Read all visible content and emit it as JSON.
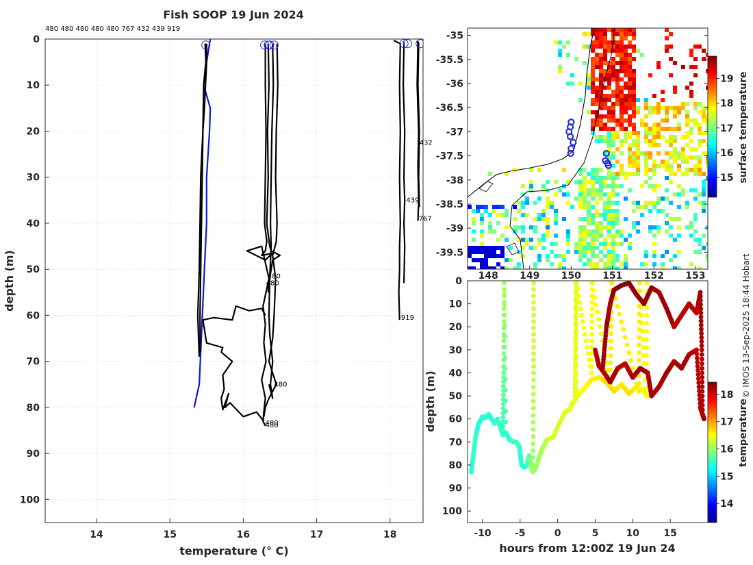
{
  "title": "Fish SOOP 19 Jun 2024",
  "copyright": "© IMOS 13-Sep-2025 18:44 Hobart",
  "profile_ids_text": "480 480 480 480 480 767 432 439 919",
  "colors": {
    "profile": "#000000",
    "climatology": "#0b17e0",
    "marker": "#2630d9"
  },
  "chart_data": [
    {
      "name": "profiles",
      "type": "line",
      "title": "Fish SOOP 19 Jun 2024",
      "xlabel": "temperature (° C)",
      "ylabel": "depth (m)",
      "xlim": [
        13.3,
        18.45
      ],
      "ylim": [
        105,
        0
      ],
      "xticks": [
        14,
        15,
        16,
        17,
        18
      ],
      "yticks": [
        0,
        10,
        20,
        30,
        40,
        50,
        60,
        70,
        80,
        90,
        100
      ],
      "grid": true,
      "series": [
        {
          "name": "climatology",
          "color": "#0b17e0",
          "x": [
            15.55,
            15.5,
            15.46,
            15.55,
            15.54,
            15.5,
            15.5,
            15.47,
            15.4,
            15.33
          ],
          "y": [
            0,
            5,
            10,
            15,
            20,
            30,
            40,
            50,
            75,
            80
          ]
        },
        {
          "name": "480-a",
          "x": [
            15.48,
            15.49,
            15.46,
            15.45,
            15.42,
            15.41,
            15.4,
            15.39,
            15.38,
            15.39,
            15.4
          ],
          "y": [
            1,
            5,
            10,
            20,
            30,
            40,
            50,
            55,
            60,
            65,
            69
          ]
        },
        {
          "name": "480-b",
          "x": [
            15.5,
            15.5,
            15.47,
            15.45,
            15.44,
            15.43,
            15.42,
            15.41,
            15.41
          ],
          "y": [
            1,
            5,
            15,
            20,
            30,
            40,
            50,
            60,
            68
          ]
        },
        {
          "name": "480-c",
          "x": [
            16.3,
            16.3,
            16.31,
            16.3,
            16.29,
            16.32,
            16.3,
            16.25,
            16.4,
            16.3,
            16.05,
            16.25,
            16.35,
            16.27,
            16.3,
            16.28,
            16.31,
            16.25,
            16.3,
            16.28,
            16.27,
            16.3
          ],
          "y": [
            1,
            10,
            20,
            30,
            40,
            44,
            46,
            47,
            46.5,
            48,
            46,
            45,
            52,
            58,
            62,
            66,
            70,
            74,
            78,
            81,
            83,
            84
          ]
        },
        {
          "name": "480-d",
          "x": [
            16.34,
            16.35,
            16.33,
            16.34,
            16.32,
            16.36,
            16.38,
            16.5,
            16.4,
            16.35,
            16.34
          ],
          "y": [
            1,
            10,
            20,
            30,
            40,
            45,
            46,
            47,
            48,
            53,
            55
          ]
        },
        {
          "name": "480-e",
          "x": [
            16.46,
            16.47,
            16.45,
            16.44,
            16.46,
            16.45,
            16.4,
            16.44,
            16.42,
            16.4,
            16.35,
            16.45,
            16.35,
            16.3,
            16.28
          ],
          "y": [
            1,
            10,
            20,
            30,
            40,
            44,
            47,
            52,
            60,
            65,
            70,
            75,
            78,
            80,
            82
          ]
        },
        {
          "name": "480-f",
          "x": [
            16.4,
            16.41,
            16.39,
            16.38,
            16.37,
            16.38,
            16.36,
            16.35,
            16.36,
            16.4,
            16.37,
            16.4,
            16.35
          ],
          "y": [
            1,
            10,
            20,
            30,
            40,
            45,
            52,
            60,
            64,
            70,
            75,
            78,
            75
          ]
        },
        {
          "name": "480-g",
          "x": [
            16.3,
            16.25,
            16.08,
            15.9,
            15.85,
            15.6,
            15.45,
            15.5,
            15.72,
            15.7,
            15.85,
            15.72,
            15.74,
            15.7,
            15.72,
            15.8,
            15.75,
            15.82,
            16.0,
            16.18,
            16.28
          ],
          "y": [
            60,
            58.5,
            59,
            58,
            61,
            60.5,
            61,
            66,
            67,
            68,
            70,
            73,
            76,
            78,
            80.5,
            77,
            80,
            79,
            82,
            81,
            83
          ]
        },
        {
          "name": "432",
          "x": [
            18.05,
            18.14,
            18.13,
            18.14,
            18.13,
            18.14,
            18.13,
            18.13,
            18.12,
            18.13
          ],
          "y": [
            0.3,
            1,
            10,
            20,
            30,
            40,
            45,
            50,
            55,
            61
          ]
        },
        {
          "name": "439",
          "x": [
            18.18,
            18.19,
            18.18,
            18.2,
            18.19,
            18.2,
            18.19,
            18.2,
            18.19
          ],
          "y": [
            0.5,
            1,
            10,
            20,
            30,
            35,
            40,
            45,
            53
          ]
        },
        {
          "name": "767",
          "x": [
            18.37,
            18.38,
            18.37,
            18.39,
            18.38,
            18.39,
            18.38
          ],
          "y": [
            0.5,
            1,
            10,
            20,
            28,
            35,
            39.5
          ]
        },
        {
          "name": "919",
          "x": [
            18.38,
            18.39,
            18.38,
            18.4,
            18.39,
            18.4
          ],
          "y": [
            0.5,
            1,
            10,
            20,
            30,
            36.5
          ]
        }
      ],
      "markers": [
        {
          "x": 15.49,
          "y": 1.3
        },
        {
          "x": 16.29,
          "y": 1.3
        },
        {
          "x": 16.34,
          "y": 1.3
        },
        {
          "x": 16.36,
          "y": 1.3
        },
        {
          "x": 16.42,
          "y": 1.3
        },
        {
          "x": 18.19,
          "y": 1.0
        },
        {
          "x": 18.24,
          "y": 1.0
        },
        {
          "x": 18.41,
          "y": 1.0
        }
      ],
      "annotations": [
        {
          "text": "432",
          "x": 18.4,
          "y": 23
        },
        {
          "text": "439",
          "x": 18.22,
          "y": 35.5
        },
        {
          "text": "767",
          "x": 18.39,
          "y": 39.5
        },
        {
          "text": "919",
          "x": 18.15,
          "y": 61
        },
        {
          "text": "480",
          "x": 16.33,
          "y": 52
        },
        {
          "text": "480",
          "x": 16.31,
          "y": 53.5
        },
        {
          "text": "480",
          "x": 16.42,
          "y": 75.5
        },
        {
          "text": "480",
          "x": 16.3,
          "y": 84.3
        },
        {
          "text": "480",
          "x": 16.3,
          "y": 83.8
        }
      ]
    },
    {
      "name": "sst-map",
      "type": "heatmap",
      "colorbar_label": "surface temperature",
      "colorbar_ticks": [
        15,
        16,
        17,
        18,
        19
      ],
      "colorbar_range": [
        14.2,
        19.9
      ],
      "xlim": [
        147.5,
        153.3
      ],
      "ylim": [
        -39.85,
        -34.85
      ],
      "yticks": [
        -35,
        -35.5,
        -36,
        -36.5,
        -37,
        -37.5,
        -38,
        -38.5,
        -39,
        -39.5
      ],
      "xticks": [
        148,
        149,
        150,
        151,
        152,
        153
      ],
      "stations": [
        {
          "lon": 150.0,
          "lat": -36.8
        },
        {
          "lon": 149.98,
          "lat": -36.9
        },
        {
          "lon": 149.95,
          "lat": -37.0
        },
        {
          "lon": 149.98,
          "lat": -37.1
        },
        {
          "lon": 150.05,
          "lat": -37.22
        },
        {
          "lon": 150.0,
          "lat": -37.35
        },
        {
          "lon": 149.99,
          "lat": -37.45
        },
        {
          "lon": 150.85,
          "lat": -37.45
        },
        {
          "lon": 150.83,
          "lat": -37.6
        },
        {
          "lon": 150.88,
          "lat": -37.65
        },
        {
          "lon": 150.9,
          "lat": -37.7
        }
      ]
    },
    {
      "name": "time-depth",
      "type": "scatter",
      "xlabel": "hours from 12:00Z 19 Jun 24",
      "ylabel": "depth (m)",
      "colorbar_label": "temperature",
      "colorbar_ticks": [
        14,
        15,
        16,
        17,
        18
      ],
      "colorbar_range": [
        13.3,
        18.45
      ],
      "xlim": [
        -12,
        20
      ],
      "ylim": [
        105,
        0
      ],
      "xticks": [
        -10,
        -5,
        0,
        5,
        10,
        15
      ],
      "yticks": [
        0,
        10,
        20,
        30,
        40,
        50,
        60,
        70,
        80,
        90,
        100
      ],
      "series": [
        {
          "name": "480-west",
          "x": [
            -11.5,
            -11.2,
            -10.9,
            -10.5,
            -10.0,
            -9.6,
            -9.2,
            -8.8,
            -8.4,
            -8.0,
            -7.6,
            -7.3,
            -7.2,
            -7.1,
            -6.9,
            -6.4,
            -5.9,
            -5.5,
            -5.1,
            -4.8,
            -4.4,
            -4.1,
            -3.8,
            -3.5,
            -3.3,
            -3.2,
            -3.2
          ],
          "depth": [
            83,
            75,
            67,
            62,
            59,
            59.5,
            58,
            60,
            62,
            60,
            64,
            67,
            40,
            1,
            66,
            69,
            70,
            70,
            72,
            80,
            81,
            80,
            76,
            81,
            83,
            40,
            1
          ],
          "temp": [
            15.4,
            15.5,
            15.5,
            15.4,
            15.4,
            15.5,
            15.4,
            15.4,
            15.5,
            15.5,
            15.5,
            15.5,
            15.8,
            16.1,
            15.5,
            15.4,
            15.5,
            15.6,
            15.5,
            15.4,
            15.4,
            15.5,
            15.7,
            15.9,
            16.0,
            16.2,
            16.3
          ]
        },
        {
          "name": "480-mid",
          "x": [
            -3.0,
            -2.2,
            -1.4,
            -0.6,
            0.2,
            1.0,
            1.6,
            2.0,
            2.3,
            2.4,
            2.5,
            2.6,
            3.5,
            4.5,
            5.5,
            6.5,
            7.5,
            8.5,
            9.5,
            10.5,
            11.5,
            12.0
          ],
          "depth": [
            82,
            74,
            69,
            68,
            62,
            57,
            56,
            53,
            52,
            1,
            51,
            50,
            47,
            43,
            42,
            44,
            48,
            45,
            49,
            46,
            48,
            50
          ],
          "temp": [
            16.0,
            16.1,
            16.2,
            16.3,
            16.3,
            16.35,
            16.35,
            16.4,
            16.4,
            16.4,
            16.4,
            16.4,
            16.5,
            16.6,
            16.6,
            16.7,
            16.7,
            16.6,
            16.7,
            16.6,
            16.5,
            16.5
          ]
        },
        {
          "name": "480-verticals",
          "x": [
            2.3,
            2.4,
            2.5,
            4.5,
            4.6,
            7.0,
            7.2,
            10.8,
            10.9,
            11.8,
            11.9
          ],
          "depth": [
            50,
            25,
            1,
            40,
            1,
            45,
            1,
            48,
            1,
            50,
            1
          ],
          "temp": [
            16.4,
            16.4,
            16.4,
            16.5,
            16.5,
            16.6,
            16.6,
            16.6,
            16.6,
            16.5,
            16.5
          ]
        },
        {
          "name": "east-warm",
          "x": [
            5.0,
            5.5,
            6.2,
            7.0,
            8.0,
            9.0,
            10.0,
            11.0,
            12.0,
            12.5,
            13.5,
            14.5,
            15.5,
            16.5,
            17.5,
            18.5,
            19.0,
            19.3,
            19.5
          ],
          "depth": [
            30,
            37,
            40,
            44,
            38,
            36,
            42,
            38,
            40,
            50,
            46,
            40,
            35,
            38,
            32,
            30,
            55,
            58,
            60
          ],
          "temp": [
            18.1,
            18.2,
            18.1,
            18.3,
            18.2,
            18.1,
            18.2,
            18.3,
            18.2,
            18.3,
            18.2,
            18.3,
            18.2,
            18.3,
            18.2,
            18.1,
            18.2,
            18.2,
            18.3
          ]
        },
        {
          "name": "east-surface",
          "x": [
            6.0,
            6.5,
            7.0,
            7.5,
            8.5,
            9.5,
            10.5,
            11.5,
            12.5,
            13.5,
            14.5,
            15.5,
            16.5,
            17.5,
            18.5,
            19.0,
            19.2,
            19.3
          ],
          "depth": [
            38,
            20,
            10,
            4,
            2,
            1,
            6,
            10,
            3,
            5,
            12,
            20,
            15,
            10,
            14,
            5,
            30,
            58
          ],
          "temp": [
            18.3,
            18.3,
            18.2,
            18.4,
            18.4,
            18.4,
            18.3,
            18.3,
            18.4,
            18.2,
            18.3,
            18.2,
            18.1,
            18.2,
            18.1,
            18.3,
            18.2,
            18.2
          ]
        }
      ]
    }
  ]
}
